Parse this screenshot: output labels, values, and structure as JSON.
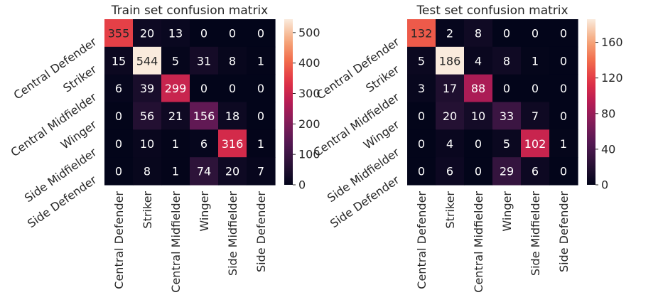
{
  "chart_data": [
    {
      "type": "heatmap",
      "title": "Train set confusion matrix",
      "row_labels": [
        "Central Defender",
        "Striker",
        "Central Midfielder",
        "Winger",
        "Side Midfielder",
        "Side Defender"
      ],
      "col_labels": [
        "Central Defender",
        "Striker",
        "Central Midfielder",
        "Winger",
        "Side Midfielder",
        "Side Defender"
      ],
      "values": [
        [
          355,
          20,
          13,
          0,
          0,
          0
        ],
        [
          15,
          544,
          5,
          31,
          8,
          1
        ],
        [
          6,
          39,
          299,
          0,
          0,
          0
        ],
        [
          0,
          56,
          21,
          156,
          18,
          0
        ],
        [
          0,
          10,
          1,
          6,
          316,
          1
        ],
        [
          0,
          8,
          1,
          74,
          20,
          7
        ]
      ],
      "colorbar": {
        "min": 0,
        "max": 544,
        "ticks": [
          0,
          100,
          200,
          300,
          400,
          500
        ]
      },
      "colormap": "rocket"
    },
    {
      "type": "heatmap",
      "title": "Test set confusion matrix",
      "row_labels": [
        "Central Defender",
        "Striker",
        "Central Midfielder",
        "Winger",
        "Side Midfielder",
        "Side Defender"
      ],
      "col_labels": [
        "Central Defender",
        "Striker",
        "Central Midfielder",
        "Winger",
        "Side Midfielder",
        "Side Defender"
      ],
      "values": [
        [
          132,
          2,
          8,
          0,
          0,
          0
        ],
        [
          5,
          186,
          4,
          8,
          1,
          0
        ],
        [
          3,
          17,
          88,
          0,
          0,
          0
        ],
        [
          0,
          20,
          10,
          33,
          7,
          0
        ],
        [
          0,
          4,
          0,
          5,
          102,
          1
        ],
        [
          0,
          6,
          0,
          29,
          6,
          0
        ]
      ],
      "colorbar": {
        "min": 0,
        "max": 186,
        "ticks": [
          0,
          40,
          80,
          120,
          160
        ]
      },
      "colormap": "rocket"
    }
  ]
}
